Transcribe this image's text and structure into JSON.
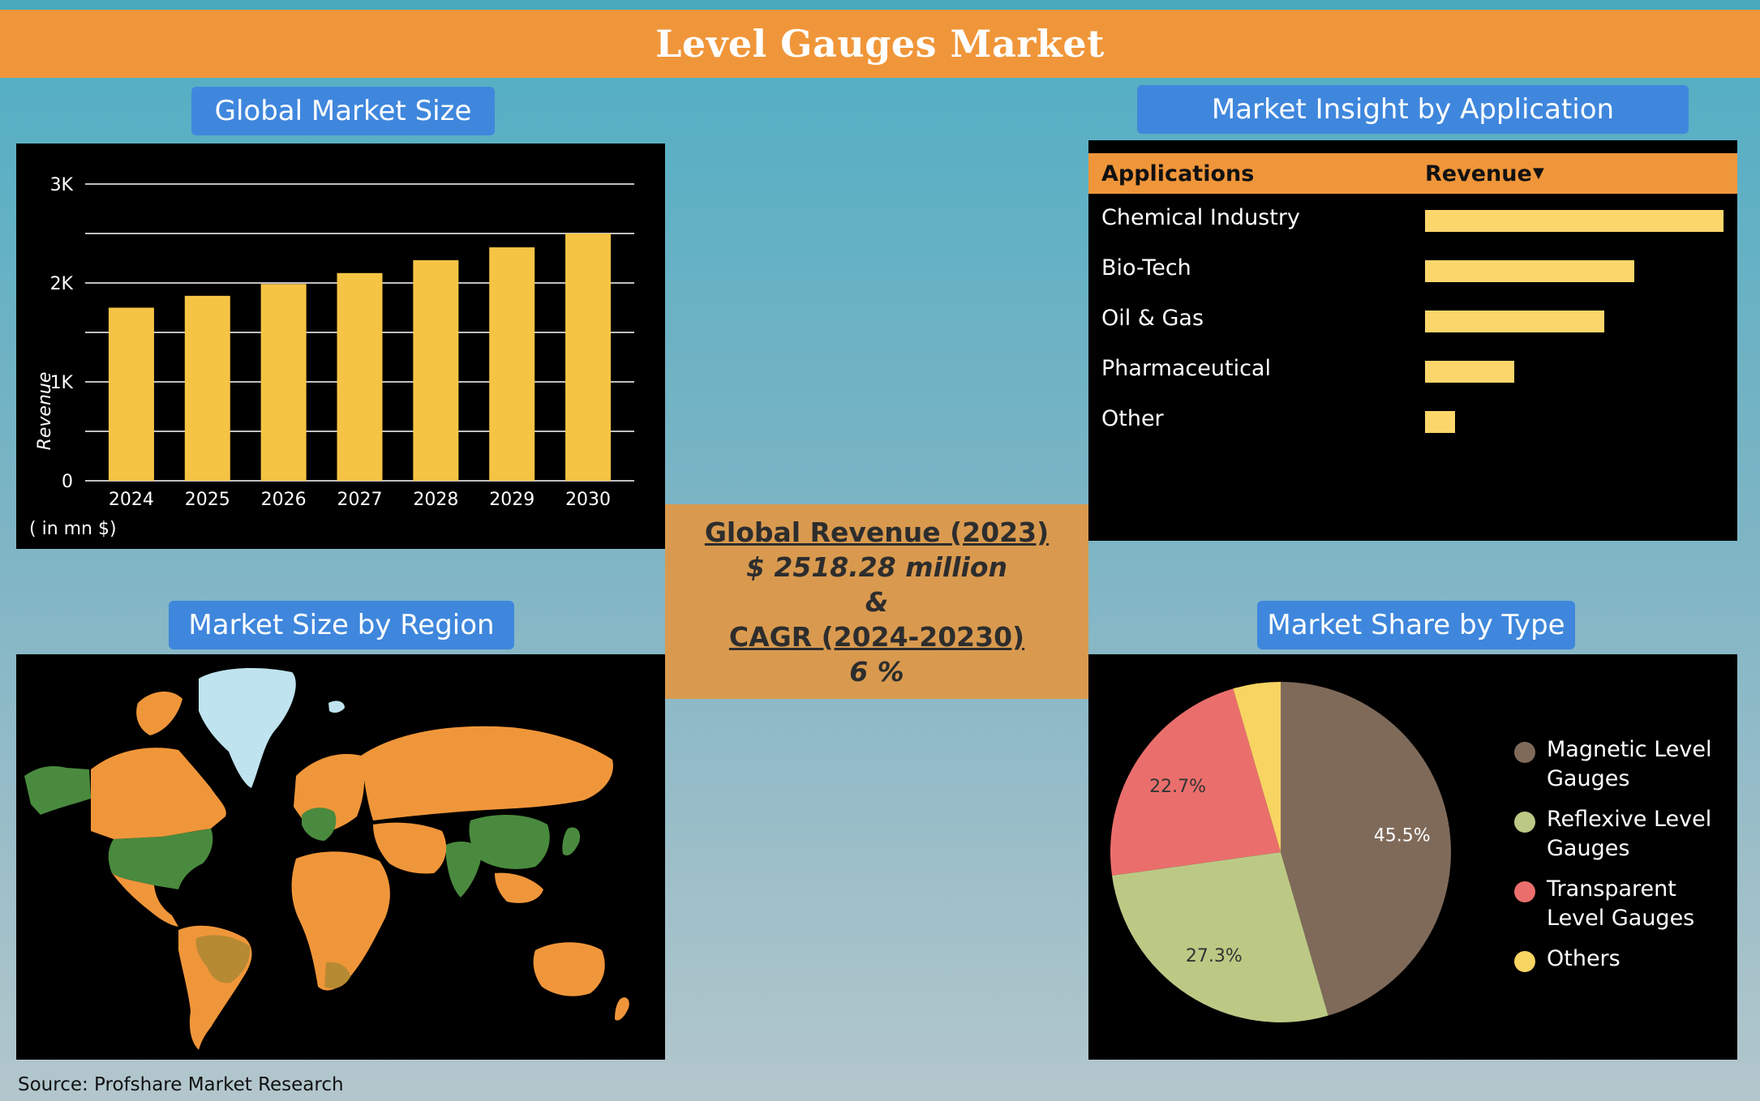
{
  "header": {
    "title": "Level Gauges Market"
  },
  "sections": {
    "global_market_size": "Global Market Size",
    "market_insight": "Market Insight by Application",
    "market_size_region": "Market Size by Region",
    "market_share_type": "Market Share by Type"
  },
  "center": {
    "revenue_title": "Global Revenue (2023)",
    "revenue_value": "$ 2518.28 million",
    "ampersand": "&",
    "cagr_title": "CAGR (2024-20230)",
    "cagr_value": "6 %"
  },
  "source": "Source: Profshare Market Research",
  "colors": {
    "header": "#f0963a",
    "pill": "#3f87dd",
    "bar": "#f6c445",
    "app_bar": "#fbd66b",
    "map_land": "#f0963a",
    "map_highlight": "#4a8a3e",
    "map_ice": "#bfe4ef"
  },
  "chart_data": [
    {
      "type": "bar",
      "categories": [
        "2024",
        "2025",
        "2026",
        "2027",
        "2028",
        "2029",
        "2030"
      ],
      "values": [
        1750,
        1870,
        1990,
        2100,
        2230,
        2360,
        2500
      ],
      "ylabel": "Revenue",
      "unit_note": "( in mn $)",
      "ylim": [
        0,
        3000
      ],
      "yticks": [
        0,
        1000,
        2000,
        3000
      ],
      "ytick_labels": [
        "0",
        "1K",
        "2K",
        "3K"
      ],
      "grid": true
    },
    {
      "type": "bar",
      "orientation": "horizontal",
      "headers": [
        "Applications",
        "Revenue"
      ],
      "sort_indicator": "▼",
      "categories": [
        "Chemical Industry",
        "Bio-Tech",
        "Oil & Gas",
        "Pharmaceutical",
        "Other"
      ],
      "values": [
        100,
        70,
        60,
        30,
        10
      ]
    },
    {
      "type": "pie",
      "labels": [
        "Magnetic Level Gauges",
        "Reflexive Level Gauges",
        "Transparent Level Gauges",
        "Others"
      ],
      "values": [
        45.5,
        27.3,
        22.7,
        4.5
      ],
      "value_labels": [
        "45.5%",
        "27.3%",
        "22.7%",
        ""
      ],
      "colors": [
        "#7f6a5a",
        "#bcc985",
        "#ea6f6c",
        "#f8d463"
      ],
      "legend": "right"
    }
  ]
}
